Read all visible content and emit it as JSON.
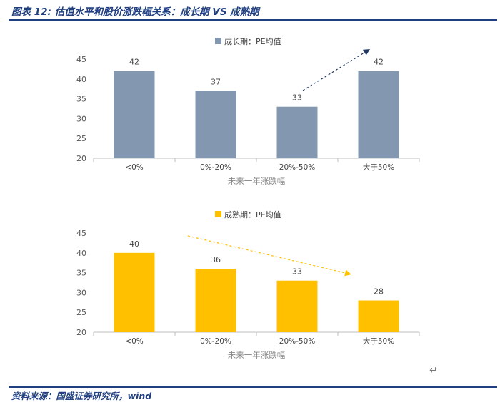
{
  "figure": {
    "title": "图表 12: 估值水平和股价涨跌幅关系：成长期 VS 成熟期",
    "source": "资料来源：国盛证券研究所，wind",
    "return_symbol": "↵"
  },
  "chart_data": [
    {
      "type": "bar",
      "legend": "成长期：PE均值",
      "categories": [
        "<0%",
        "0%-20%",
        "20%-50%",
        "大于50%"
      ],
      "values": [
        42,
        37,
        33,
        42
      ],
      "xlabel": "未来一年涨跌幅",
      "ylabel": "",
      "ylim": [
        20,
        45
      ],
      "yticks": [
        20,
        25,
        30,
        35,
        40,
        45
      ],
      "color": "#8497b0",
      "legend_position": "top-center",
      "grid": false,
      "annotation": "dashed arrow rising from 20%-50% toward 大于50%",
      "annotation_color": "#203864"
    },
    {
      "type": "bar",
      "legend": "成熟期：PE均值",
      "categories": [
        "<0%",
        "0%-20%",
        "20%-50%",
        "大于50%"
      ],
      "values": [
        40,
        36,
        33,
        28
      ],
      "xlabel": "未来一年涨跌幅",
      "ylabel": "",
      "ylim": [
        20,
        45
      ],
      "yticks": [
        20,
        25,
        30,
        35,
        40,
        45
      ],
      "color": "#ffc000",
      "legend_position": "top-center",
      "grid": false,
      "annotation": "dashed arrow falling from 0%-20% toward 大于50%",
      "annotation_color": "#ffc000"
    }
  ]
}
